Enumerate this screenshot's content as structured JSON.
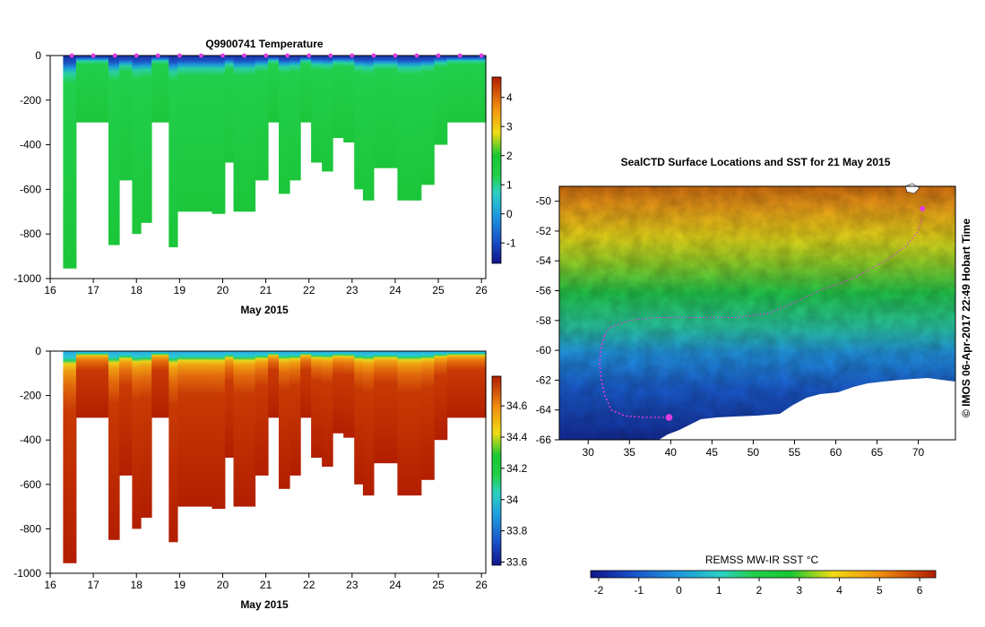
{
  "credit": "© IMOS 06-Apr-2017 22:49 Hobart Time",
  "chart_data": [
    {
      "type": "heatmap",
      "title": "Q9900741  Temperature",
      "xlabel": "May 2015",
      "ylabel": "",
      "xlim": [
        16,
        26.1
      ],
      "ylim": [
        -1000,
        0
      ],
      "x_ticks": [
        "16",
        "17",
        "18",
        "19",
        "20",
        "21",
        "22",
        "23",
        "24",
        "25",
        "26"
      ],
      "y_ticks": [
        "0",
        "-200",
        "-400",
        "-600",
        "-800",
        "-1000"
      ],
      "colorbar": {
        "ticks": [
          "4",
          "3",
          "2",
          "1",
          "0",
          "-1"
        ],
        "range": [
          -1.7,
          4.7
        ]
      },
      "profiles": {
        "start": [
          16.3,
          16.6,
          16.9,
          17.35,
          17.6,
          17.9,
          18.1,
          18.35,
          18.5,
          18.75,
          18.95,
          19.2,
          19.45,
          19.75,
          20.05,
          20.25,
          20.45,
          20.75,
          21.05,
          21.3,
          21.55,
          21.8,
          22.05,
          22.3,
          22.55,
          22.8,
          23.05,
          23.25,
          23.5,
          23.75,
          24.05,
          24.3,
          24.6,
          24.9,
          25.2,
          25.5,
          25.8
        ],
        "end": [
          16.6,
          16.9,
          17.35,
          17.6,
          17.9,
          18.1,
          18.35,
          18.5,
          18.75,
          18.95,
          19.2,
          19.45,
          19.75,
          20.05,
          20.25,
          20.45,
          20.75,
          21.05,
          21.3,
          21.55,
          21.8,
          22.05,
          22.3,
          22.55,
          22.8,
          23.05,
          23.25,
          23.5,
          23.75,
          24.05,
          24.3,
          24.6,
          24.9,
          25.2,
          25.5,
          25.8,
          26.1
        ],
        "max_depth": [
          -955,
          -300,
          -300,
          -850,
          -560,
          -800,
          -750,
          -300,
          -300,
          -860,
          -700,
          -700,
          -700,
          -710,
          -480,
          -700,
          -700,
          -560,
          -300,
          -620,
          -560,
          -300,
          -480,
          -520,
          -370,
          -390,
          -600,
          -650,
          -505,
          -505,
          -650,
          -650,
          -580,
          -400,
          -300,
          -300,
          -300
        ]
      },
      "surface_markers_x": [
        16.5,
        17.0,
        17.5,
        18.0,
        18.5,
        19.0,
        19.5,
        20.0,
        20.5,
        21.0,
        21.5,
        22.0,
        22.5,
        23.0,
        23.5,
        24.0,
        24.5,
        25.0,
        25.5,
        26.0
      ],
      "palette": [
        "#10148a",
        "#1a50c8",
        "#1e9ade",
        "#2bd0c4",
        "#22d04a",
        "#18c832",
        "#f0dc14",
        "#f08c10",
        "#b01d00"
      ],
      "dominant_deep_value_c": 1.2
    },
    {
      "type": "heatmap",
      "title": "",
      "xlabel": "May 2015",
      "ylabel": "",
      "xlim": [
        16,
        26.1
      ],
      "ylim": [
        -1000,
        0
      ],
      "x_ticks": [
        "16",
        "17",
        "18",
        "19",
        "20",
        "21",
        "22",
        "23",
        "24",
        "25",
        "26"
      ],
      "y_ticks": [
        "0",
        "-200",
        "-400",
        "-600",
        "-800",
        "-1000"
      ],
      "colorbar": {
        "ticks": [
          "34.6",
          "34.4",
          "34.2",
          "34",
          "33.8",
          "33.6"
        ],
        "range": [
          33.58,
          34.79
        ]
      },
      "dominant_deep_value_psu": 34.7
    },
    {
      "type": "heatmap",
      "title": "SealCTD Surface Locations and SST for 21 May 2015",
      "xlabel": "",
      "ylabel": "",
      "xlim": [
        26.5,
        74.5
      ],
      "ylim": [
        -66,
        -49
      ],
      "x_ticks": [
        "30",
        "35",
        "40",
        "45",
        "50",
        "55",
        "60",
        "65",
        "70"
      ],
      "y_ticks": [
        "-50",
        "-52",
        "-54",
        "-56",
        "-58",
        "-60",
        "-62",
        "-64",
        "-66"
      ],
      "track": [
        [
          32,
          -59
        ],
        [
          32.5,
          -58.5
        ],
        [
          35,
          -58
        ],
        [
          38,
          -57.8
        ],
        [
          42,
          -57.8
        ],
        [
          48,
          -57.8
        ],
        [
          52,
          -57.5
        ],
        [
          55,
          -56.8
        ],
        [
          58,
          -56
        ],
        [
          62,
          -55.2
        ],
        [
          66,
          -54
        ],
        [
          68.5,
          -53
        ],
        [
          70,
          -52
        ],
        [
          70.5,
          -51
        ]
      ],
      "track_south": [
        [
          32,
          -59
        ],
        [
          31.5,
          -60
        ],
        [
          31.4,
          -61
        ],
        [
          31.6,
          -62
        ],
        [
          32,
          -63
        ],
        [
          32.8,
          -64
        ],
        [
          34.5,
          -64.4
        ],
        [
          37,
          -64.5
        ],
        [
          39.8,
          -64.5
        ]
      ],
      "current_position": [
        39.8,
        -64.5
      ],
      "last_position": [
        70.5,
        -50.5
      ]
    },
    {
      "type": "colorbar",
      "title": "REMSS MW-IR SST °C",
      "ticks": [
        "-2",
        "-1",
        "0",
        "1",
        "2",
        "3",
        "4",
        "5",
        "6"
      ],
      "range": [
        -2.2,
        6.4
      ]
    }
  ]
}
